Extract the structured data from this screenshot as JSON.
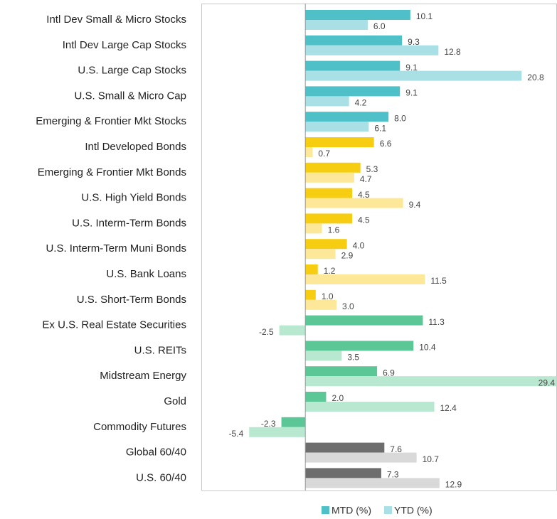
{
  "chart_data": {
    "type": "hbar",
    "categories": [
      "Intl Dev Small & Micro Stocks",
      "Intl Dev Large Cap Stocks",
      "U.S. Large Cap Stocks",
      "U.S. Small & Micro Cap",
      "Emerging & Frontier Mkt Stocks",
      "Intl Developed Bonds",
      "Emerging & Frontier Mkt Bonds",
      "U.S. High Yield Bonds",
      "U.S. Interm-Term Bonds",
      "U.S. Interm-Term Muni Bonds",
      "U.S. Bank Loans",
      "U.S. Short-Term Bonds",
      "Ex U.S. Real Estate Securities",
      "U.S. REITs",
      "Midstream Energy",
      "Gold",
      "Commodity Futures",
      "Global 60/40",
      "U.S. 60/40"
    ],
    "series": [
      {
        "name": "MTD (%)",
        "color": "#4fbfc8",
        "values": [
          10.1,
          9.3,
          9.1,
          9.1,
          8.0,
          6.6,
          5.3,
          4.5,
          4.5,
          4.0,
          1.2,
          1.0,
          11.3,
          10.4,
          6.9,
          2.0,
          -2.3,
          7.6,
          7.3
        ],
        "value_labels": [
          "10.1",
          "9.3",
          "9.1",
          "9.1",
          "8.0",
          "6.6",
          "5.3",
          "4.5",
          "4.5",
          "4.0",
          "1.2",
          "1.0",
          "11.3",
          "10.4",
          "6.9",
          "2.0",
          "-2.3",
          "7.6",
          "7.3"
        ],
        "colors": [
          "#4fbfc8",
          "#4fbfc8",
          "#4fbfc8",
          "#4fbfc8",
          "#4fbfc8",
          "#f7cd12",
          "#f7cd12",
          "#f7cd12",
          "#f7cd12",
          "#f7cd12",
          "#f7cd12",
          "#f7cd12",
          "#5cc796",
          "#5cc796",
          "#5cc796",
          "#5cc796",
          "#5cc796",
          "#6d6d6d",
          "#6d6d6d"
        ]
      },
      {
        "name": "YTD (%)",
        "color": "#a8e0e6",
        "values": [
          6.0,
          12.8,
          20.8,
          4.2,
          6.1,
          0.7,
          4.7,
          9.4,
          1.6,
          2.9,
          11.5,
          3.0,
          -2.5,
          3.5,
          29.4,
          12.4,
          -5.4,
          10.7,
          12.9
        ],
        "value_labels": [
          "6.0",
          "12.8",
          "20.8",
          "4.2",
          "6.1",
          "0.7",
          "4.7",
          "9.4",
          "1.6",
          "2.9",
          "11.5",
          "3.0",
          "-2.5",
          "3.5",
          "29.4",
          "12.4",
          "-5.4",
          "10.7",
          "12.9"
        ],
        "colors": [
          "#a8e0e6",
          "#a8e0e6",
          "#a8e0e6",
          "#a8e0e6",
          "#a8e0e6",
          "#fde89a",
          "#fde89a",
          "#fde89a",
          "#fde89a",
          "#fde89a",
          "#fde89a",
          "#fde89a",
          "#b8e8d0",
          "#b8e8d0",
          "#b8e8d0",
          "#b8e8d0",
          "#b8e8d0",
          "#d9d9d9",
          "#d9d9d9"
        ]
      }
    ],
    "xlim": [
      -10,
      24.2
    ],
    "legend": "bottom"
  }
}
